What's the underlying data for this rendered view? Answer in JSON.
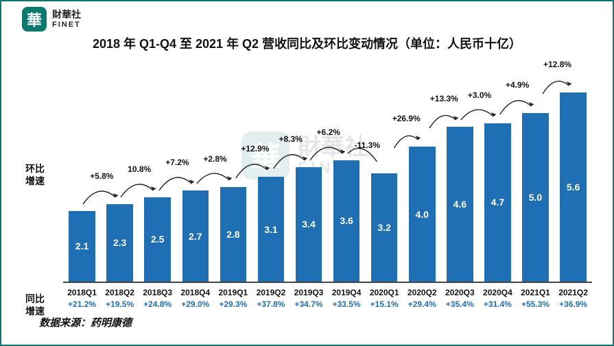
{
  "logo": {
    "badge": "華",
    "cn": "財華社",
    "en": "FINET"
  },
  "title": "2018 年 Q1-Q4 至 2021 年 Q2 营收同比及环比变动情况（单位：人民币十亿）",
  "title_fontsize": 18,
  "y_label_qoq": "环比\n增速",
  "y_label_yoy": "同比\n增速",
  "source": "数据来源：药明康德",
  "chart": {
    "type": "bar",
    "bar_color": "#1f6fb5",
    "bar_value_color": "#ffffff",
    "axis_color": "#444444",
    "background_color": "#ffffff",
    "bar_width_ratio": 0.7,
    "ylim": [
      0,
      6.5
    ],
    "categories": [
      "2018Q1",
      "2018Q2",
      "2018Q3",
      "2018Q4",
      "2019Q1",
      "2019Q2",
      "2019Q3",
      "2019Q4",
      "2020Q1",
      "2020Q2",
      "2020Q3",
      "2020Q4",
      "2021Q1",
      "2021Q2"
    ],
    "values": [
      2.1,
      2.3,
      2.5,
      2.7,
      2.8,
      3.1,
      3.4,
      3.6,
      3.2,
      4.0,
      4.6,
      4.7,
      5.0,
      5.6
    ],
    "yoy": [
      "+21.2%",
      "+19.5%",
      "+24.8%",
      "+29.0%",
      "+29.3%",
      "+37.8%",
      "+34.7%",
      "+33.5%",
      "+15.1%",
      "+29.4%",
      "+35.4%",
      "+31.4%",
      "+55.3%",
      "+36.9%"
    ],
    "qoq": [
      "",
      "+5.8%",
      "10.8%",
      "+7.2%",
      "+2.8%",
      "+12.9%",
      "+8.3%",
      "+6.2%",
      "-11.3%",
      "+26.9%",
      "+13.3%",
      "+3.0%",
      "+4.9%",
      "+12.8%"
    ],
    "value_fontsize": 14,
    "category_fontsize": 12,
    "yoy_fontsize": 12,
    "qoq_fontsize": 12,
    "yoy_color": "#1f6fb5",
    "arrow_color": "#222222"
  }
}
